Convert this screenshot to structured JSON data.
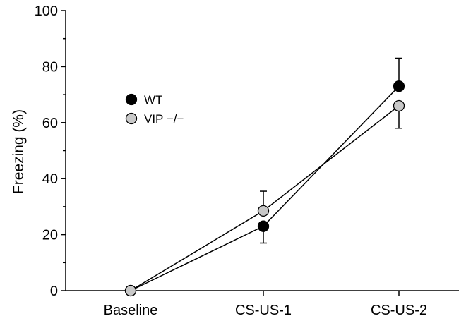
{
  "chart_data": {
    "type": "line",
    "ylabel": "Freezing (%)",
    "xlabel": "",
    "ylim": [
      0,
      100
    ],
    "yticks": [
      0,
      20,
      40,
      60,
      80,
      100
    ],
    "categories": [
      "Baseline",
      "CS-US-1",
      "CS-US-2"
    ],
    "grid": false,
    "legend_position": "upper-left",
    "series": [
      {
        "name": "WT",
        "marker_color": "#000000",
        "values": [
          0,
          23,
          73
        ],
        "error": [
          0,
          6,
          10
        ]
      },
      {
        "name": "VIP −/−",
        "marker_color": "#c8c8c8",
        "values": [
          0,
          28.5,
          66
        ],
        "error": [
          0,
          7,
          8
        ]
      }
    ]
  }
}
